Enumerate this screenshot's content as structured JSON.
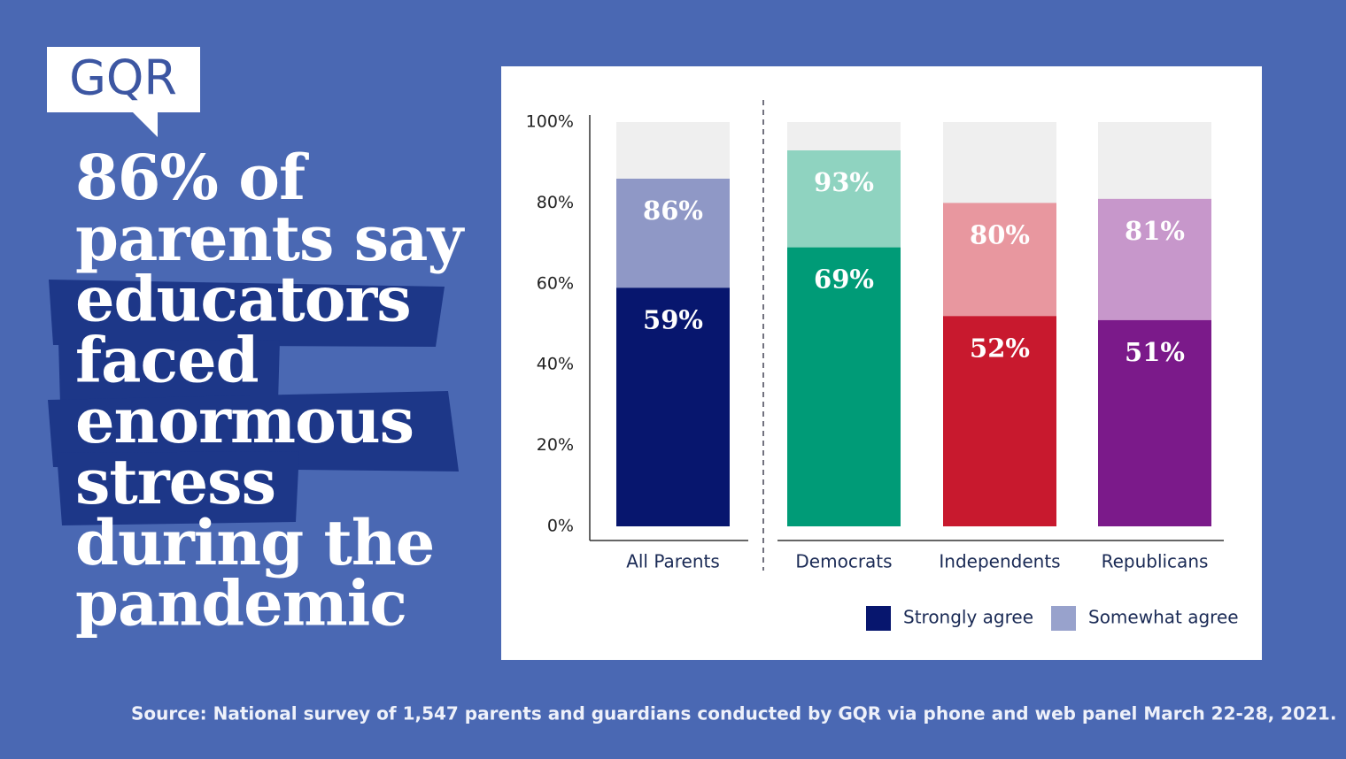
{
  "logo": "GQR",
  "headline_lines": [
    "86% of",
    "parents say",
    "educators",
    "faced",
    "enormous",
    "stress",
    "during the",
    "pandemic"
  ],
  "source": "Source: National survey of 1,547 parents and guardians conducted by GQR via phone and web panel March 22-28, 2021.",
  "chart_data": {
    "type": "bar",
    "categories": [
      "All Parents",
      "Democrats",
      "Independents",
      "Republicans"
    ],
    "series": [
      {
        "name": "Somewhat agree",
        "color": "#98a2cc",
        "colors": [
          "#8f98c6",
          "#8fd3c0",
          "#e8979f",
          "#c797cb"
        ],
        "values": [
          86,
          93,
          80,
          81
        ],
        "value_labels": [
          "86%",
          "93%",
          "80%",
          "81%"
        ]
      },
      {
        "name": "Strongly agree",
        "color": "#07166e",
        "colors": [
          "#07166e",
          "#009b77",
          "#c8192e",
          "#7b1a8a"
        ],
        "values": [
          59,
          69,
          52,
          51
        ],
        "value_labels": [
          "59%",
          "69%",
          "52%",
          "51%"
        ]
      }
    ],
    "ylim": [
      0,
      100
    ],
    "yticks": [
      {
        "value": 0,
        "label": "0%"
      },
      {
        "value": 20,
        "label": "20%"
      },
      {
        "value": 40,
        "label": "40%"
      },
      {
        "value": 60,
        "label": "60%"
      },
      {
        "value": 80,
        "label": "80%"
      },
      {
        "value": 100,
        "label": "100%"
      }
    ],
    "grid": false,
    "legend": "bottom-right"
  }
}
